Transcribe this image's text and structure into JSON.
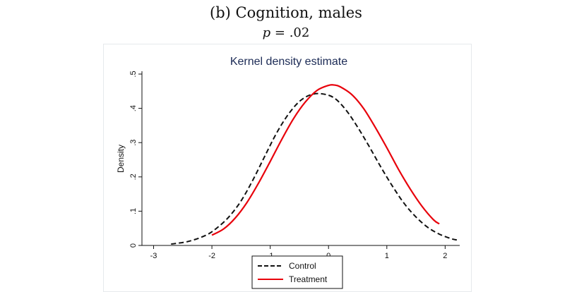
{
  "figure": {
    "caption": "(b) Cognition, males",
    "p_label": "p",
    "p_value": "= .02"
  },
  "chart_data": {
    "type": "line",
    "title": "Kernel density estimate",
    "xlabel": "",
    "ylabel": "Density",
    "xlim": [
      -3.2,
      2.25
    ],
    "ylim": [
      0,
      0.5
    ],
    "x_ticks": [
      -3,
      -2,
      -1,
      0,
      1,
      2
    ],
    "x_tick_labels": [
      "-3",
      "-2",
      "-1",
      "0",
      "1",
      "2"
    ],
    "y_ticks": [
      0,
      0.1,
      0.2,
      0.3,
      0.4,
      0.5
    ],
    "y_tick_labels": [
      "0",
      ".1",
      ".2",
      ".3",
      ".4",
      ".5"
    ],
    "legend_position": "bottom",
    "series": [
      {
        "name": "Control",
        "color": "#111111",
        "style": "dashed",
        "x": [
          -2.7,
          -2.4,
          -2.1,
          -1.9,
          -1.7,
          -1.5,
          -1.3,
          -1.1,
          -0.9,
          -0.7,
          -0.5,
          -0.3,
          -0.1,
          0.1,
          0.3,
          0.5,
          0.7,
          0.9,
          1.1,
          1.3,
          1.5,
          1.7,
          1.9,
          2.1,
          2.2
        ],
        "y": [
          0.004,
          0.012,
          0.03,
          0.053,
          0.085,
          0.13,
          0.19,
          0.258,
          0.325,
          0.38,
          0.42,
          0.44,
          0.442,
          0.43,
          0.395,
          0.345,
          0.288,
          0.228,
          0.172,
          0.122,
          0.083,
          0.053,
          0.033,
          0.02,
          0.016
        ]
      },
      {
        "name": "Treatment",
        "color": "#e8000b",
        "style": "solid",
        "x": [
          -2.0,
          -1.8,
          -1.6,
          -1.4,
          -1.2,
          -1.0,
          -0.8,
          -0.6,
          -0.4,
          -0.2,
          0.0,
          0.1,
          0.2,
          0.4,
          0.6,
          0.8,
          1.0,
          1.2,
          1.4,
          1.6,
          1.8,
          1.9
        ],
        "y": [
          0.03,
          0.048,
          0.08,
          0.125,
          0.182,
          0.245,
          0.31,
          0.37,
          0.418,
          0.452,
          0.467,
          0.468,
          0.463,
          0.44,
          0.4,
          0.345,
          0.285,
          0.222,
          0.165,
          0.115,
          0.075,
          0.063
        ]
      }
    ]
  }
}
